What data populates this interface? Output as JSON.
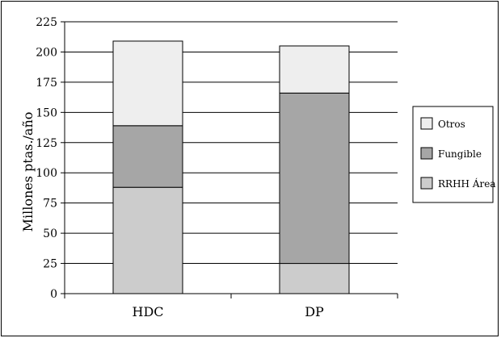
{
  "chart_data": {
    "type": "bar",
    "stacked": true,
    "categories": [
      "HDC",
      "DP"
    ],
    "series": [
      {
        "name": "RRHH Área",
        "values": [
          88,
          25
        ],
        "color": "#cccccc"
      },
      {
        "name": "Fungible",
        "values": [
          51,
          141
        ],
        "color": "#a6a6a6"
      },
      {
        "name": "Otros",
        "values": [
          70,
          39
        ],
        "color": "#eeeeee"
      }
    ],
    "ylabel": "Millones ptas./año",
    "xlabel": "",
    "title": "",
    "ylim": [
      0,
      225
    ],
    "yticks": [
      0,
      25,
      50,
      75,
      100,
      125,
      150,
      175,
      200,
      225
    ],
    "grid": true,
    "legend_position": "right",
    "legend_order": [
      "Otros",
      "Fungible",
      "RRHH Área"
    ]
  }
}
